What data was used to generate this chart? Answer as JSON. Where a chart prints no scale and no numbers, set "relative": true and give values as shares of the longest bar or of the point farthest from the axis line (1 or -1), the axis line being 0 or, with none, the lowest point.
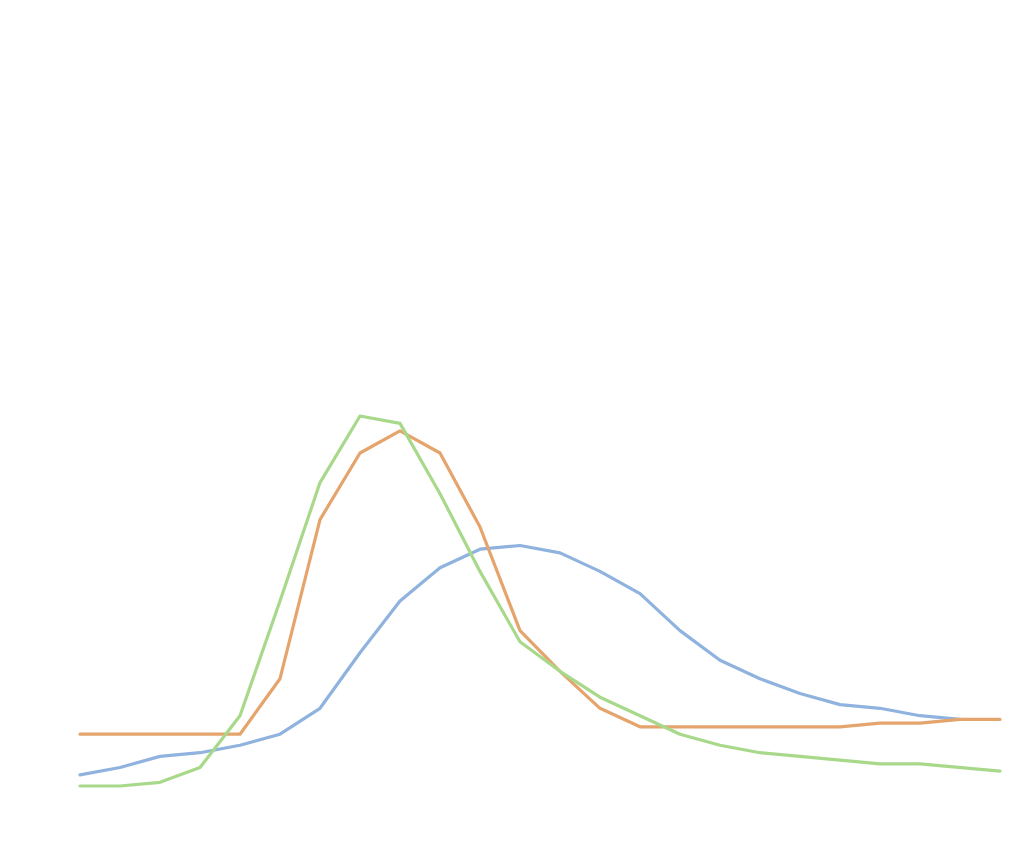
{
  "chart_data": {
    "type": "line",
    "relative": true,
    "line_style": "solid",
    "categories": [
      null,
      null,
      null,
      null,
      null,
      null,
      null,
      null,
      null,
      null,
      null,
      null,
      null,
      null,
      null,
      null,
      null,
      null,
      null,
      null,
      null,
      null,
      null,
      null
    ],
    "series": [
      {
        "color": "#8fb3de",
        "values": [
          0.03,
          0.05,
          0.08,
          0.09,
          0.11,
          0.14,
          0.21,
          0.36,
          0.5,
          0.59,
          0.64,
          0.65,
          0.63,
          0.58,
          0.52,
          0.42,
          0.34,
          0.29,
          0.25,
          0.22,
          0.21,
          0.19,
          0.18,
          null
        ]
      },
      {
        "color": "#e4a46c",
        "values": [
          0.14,
          0.14,
          0.14,
          0.14,
          0.14,
          0.29,
          0.72,
          0.9,
          0.96,
          0.9,
          0.7,
          0.42,
          0.31,
          0.21,
          0.16,
          0.16,
          0.16,
          0.16,
          0.16,
          0.16,
          0.17,
          0.17,
          0.18,
          0.18
        ]
      },
      {
        "color": "#a8d98a",
        "values": [
          0,
          0,
          0.01,
          0.05,
          0.19,
          0.5,
          0.82,
          1,
          0.98,
          0.79,
          0.58,
          0.39,
          0.31,
          0.24,
          0.19,
          0.14,
          0.11,
          0.09,
          0.08,
          0.07,
          0.06,
          0.06,
          0.05,
          0.04
        ]
      }
    ]
  }
}
